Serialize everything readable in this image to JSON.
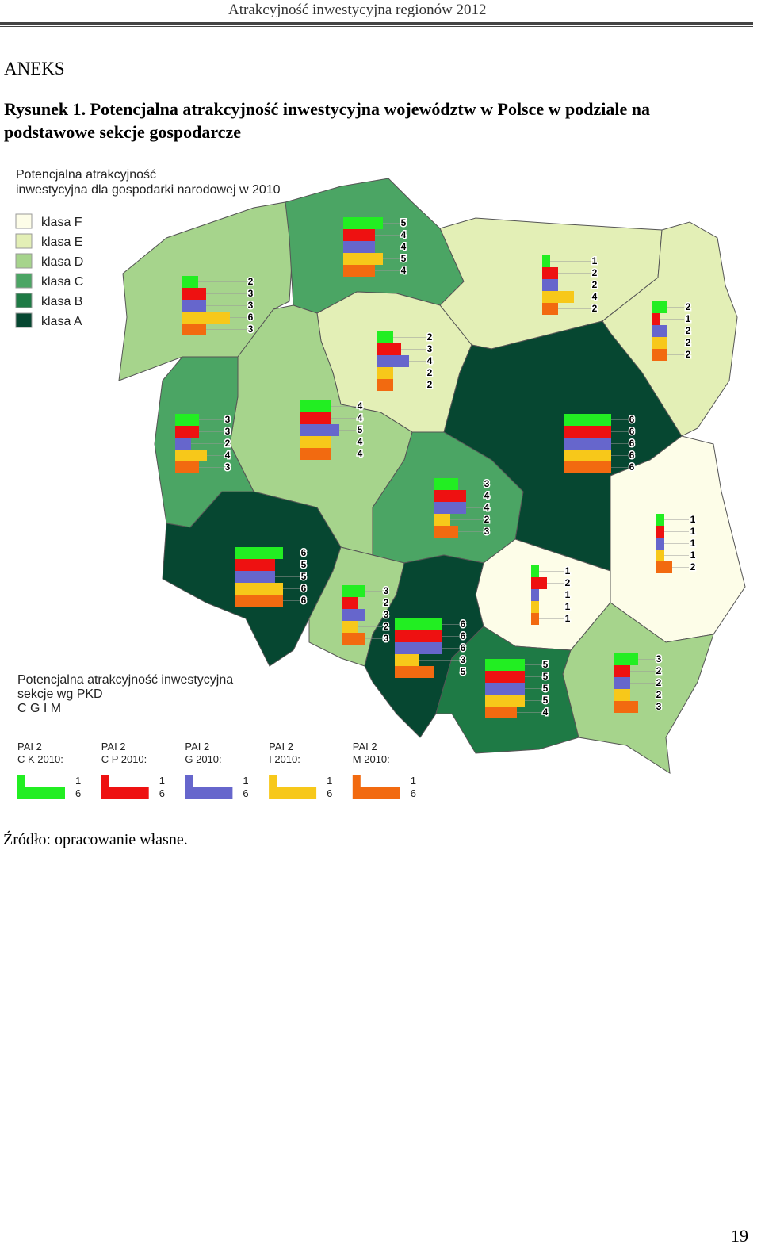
{
  "header": {
    "title": "Atrakcyjność inwestycyjna regionów 2012"
  },
  "section": "ANEKS",
  "figure": {
    "caption_lines": [
      "Rysunek 1. Potencjalna atrakcyjność inwestycyjna województw w Polsce w podziale na",
      "podstawowe sekcje gospodarcze"
    ],
    "map": {
      "title_lines": [
        "Potencjalna atrakcyjność",
        "inwestycyjna dla gospodarki narodowej w 2010"
      ],
      "class_legend": [
        {
          "label": "klasa F",
          "color": "#fdfde8"
        },
        {
          "label": "klasa E",
          "color": "#e3efb6"
        },
        {
          "label": "klasa D",
          "color": "#a6d48c"
        },
        {
          "label": "klasa C",
          "color": "#4ba564"
        },
        {
          "label": "klasa B",
          "color": "#1e7a45"
        },
        {
          "label": "klasa A",
          "color": "#064731"
        }
      ],
      "pkd_title_lines": [
        "Potencjalna atrakcyjność inwestycyjna",
        "sekcje wg PKD",
        "C G I M"
      ],
      "sections": [
        {
          "label_lines": [
            "PAI 2",
            "C K 2010:"
          ],
          "color": "#22ee22",
          "scale": [
            1,
            6
          ]
        },
        {
          "label_lines": [
            "PAI 2",
            "C P 2010:"
          ],
          "color": "#ee1111",
          "scale": [
            1,
            6
          ]
        },
        {
          "label_lines": [
            "PAI 2",
            "G 2010:"
          ],
          "color": "#6666cc",
          "scale": [
            1,
            6
          ]
        },
        {
          "label_lines": [
            "PAI 2",
            "I 2010:"
          ],
          "color": "#f7c81a",
          "scale": [
            1,
            6
          ]
        },
        {
          "label_lines": [
            "PAI 2",
            "M 2010:"
          ],
          "color": "#f26a10",
          "scale": [
            1,
            6
          ]
        }
      ],
      "regions": [
        {
          "color": "#a6d48c",
          "values": [
            2,
            3,
            3,
            6,
            3
          ]
        },
        {
          "color": "#4ba564",
          "values": [
            5,
            4,
            4,
            5,
            4
          ]
        },
        {
          "color": "#e3efb6",
          "values": [
            1,
            2,
            2,
            4,
            2
          ]
        },
        {
          "color": "#e3efb6",
          "values": [
            2,
            1,
            2,
            2,
            2
          ]
        },
        {
          "color": "#e3efb6",
          "values": [
            2,
            3,
            4,
            2,
            2
          ]
        },
        {
          "color": "#a6d48c",
          "values": [
            3,
            3,
            2,
            4,
            3
          ]
        },
        {
          "color": "#4ba564",
          "values": [
            4,
            4,
            5,
            4,
            4
          ]
        },
        {
          "color": "#064731",
          "values": [
            6,
            6,
            6,
            6,
            6
          ]
        },
        {
          "color": "#4ba564",
          "values": [
            3,
            4,
            4,
            2,
            3
          ]
        },
        {
          "color": "#fdfde8",
          "values": [
            1,
            1,
            1,
            1,
            2
          ]
        },
        {
          "color": "#064731",
          "values": [
            6,
            5,
            5,
            6,
            6
          ]
        },
        {
          "color": "#a6d48c",
          "values": [
            3,
            2,
            3,
            2,
            3
          ]
        },
        {
          "color": "#fdfde8",
          "values": [
            1,
            2,
            1,
            1,
            1
          ]
        },
        {
          "color": "#064731",
          "values": [
            6,
            6,
            6,
            3,
            5
          ]
        },
        {
          "color": "#1e7a45",
          "values": [
            5,
            5,
            5,
            5,
            4
          ]
        },
        {
          "color": "#a6d48c",
          "values": [
            3,
            2,
            2,
            2,
            3
          ]
        }
      ]
    }
  },
  "source": "Źródło: opracowanie własne.",
  "page_number": "19"
}
